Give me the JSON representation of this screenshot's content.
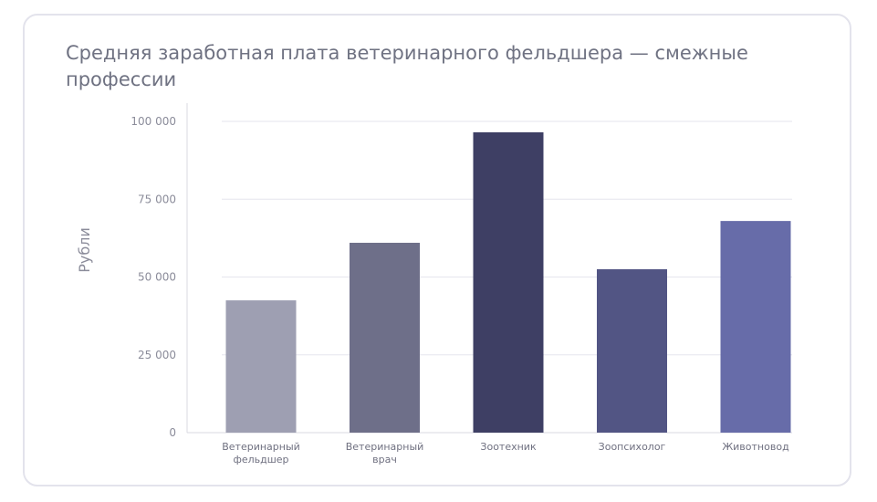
{
  "chart_data": {
    "type": "bar",
    "title": "Средняя заработная плата ветеринарного фельдшера — смежные профессии",
    "xlabel": "",
    "ylabel": "Рубли",
    "categories": [
      [
        "Ветеринарный",
        "фельдшер"
      ],
      [
        "Ветеринарный",
        "врач"
      ],
      [
        "Зоотехник"
      ],
      [
        "Зоопсихолог"
      ],
      [
        "Животновод"
      ]
    ],
    "values": [
      42500,
      61000,
      96500,
      52500,
      68000
    ],
    "colors": [
      "#9e9fb2",
      "#6e6f89",
      "#3e3f64",
      "#525584",
      "#676ca9"
    ],
    "ylim": [
      0,
      100000
    ],
    "yticks": [
      0,
      25000,
      50000,
      75000,
      100000
    ],
    "ytick_labels": [
      "0",
      "25 000",
      "50 000",
      "75 000",
      "100 000"
    ],
    "grid": true,
    "legend": "none"
  }
}
